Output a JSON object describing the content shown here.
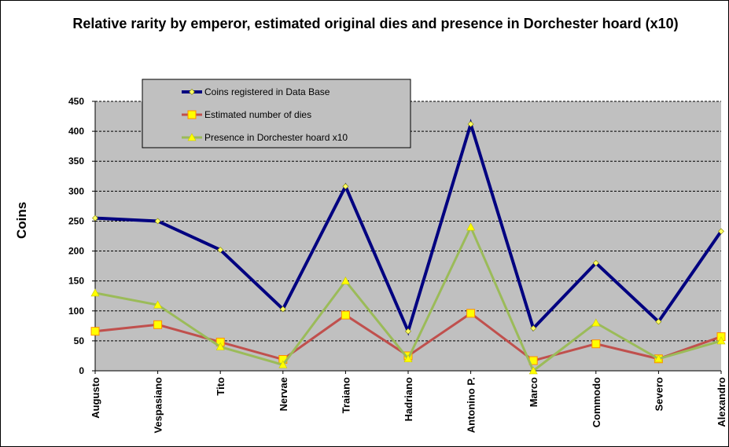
{
  "chart_data": {
    "type": "line",
    "title": "Relative rarity by emperor, estimated original dies and presence in Dorchester hoard (x10)",
    "ylabel": "Coins",
    "xlabel": "",
    "ylim": [
      0,
      450
    ],
    "yticks": [
      0,
      50,
      100,
      150,
      200,
      250,
      300,
      350,
      400,
      450
    ],
    "grid": true,
    "legend_position": "top-left",
    "categories": [
      "Augusto",
      "Vespasiano",
      "Tito",
      "Nervae",
      "Traiano",
      "Hadriano",
      "Antonino P.",
      "Marco",
      "Commodo",
      "Severo",
      "Alexandro"
    ],
    "series": [
      {
        "name": "Coins registered  in Data Base",
        "color": "#000080",
        "marker": "diamond",
        "marker_color": "#ffff66",
        "values": [
          255,
          250,
          202,
          103,
          308,
          66,
          412,
          71,
          180,
          82,
          233
        ]
      },
      {
        "name": "Estimated number  of dies",
        "color": "#c0504d",
        "marker": "square",
        "marker_color": "#ffff00",
        "values": [
          66,
          77,
          48,
          19,
          93,
          25,
          96,
          17,
          45,
          20,
          57
        ]
      },
      {
        "name": "Presence in Dorchester  hoard x10",
        "color": "#9bbb59",
        "marker": "triangle",
        "marker_color": "#ffff00",
        "values": [
          130,
          110,
          40,
          10,
          150,
          20,
          240,
          0,
          80,
          20,
          50
        ]
      }
    ],
    "plot_background": "#c0c0c0"
  }
}
